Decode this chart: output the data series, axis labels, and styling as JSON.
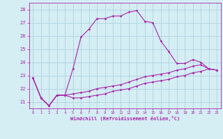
{
  "xlabel": "Windchill (Refroidissement éolien,°C)",
  "background_color": "#d4eef4",
  "grid_color": "#aaccdd",
  "line_color": "#aa22aa",
  "x_ticks": [
    0,
    1,
    2,
    3,
    4,
    5,
    6,
    7,
    8,
    9,
    10,
    11,
    12,
    13,
    14,
    15,
    16,
    17,
    18,
    19,
    20,
    21,
    22,
    23
  ],
  "ylim": [
    20.5,
    28.5
  ],
  "xlim": [
    -0.5,
    23.5
  ],
  "yticks": [
    21,
    22,
    23,
    24,
    25,
    26,
    27,
    28
  ],
  "line1": [
    22.8,
    21.3,
    20.7,
    21.5,
    21.5,
    23.5,
    25.9,
    26.5,
    27.3,
    27.3,
    27.5,
    27.5,
    27.8,
    27.9,
    27.1,
    27.0,
    25.6,
    24.8,
    23.9,
    23.9,
    24.2,
    24.0,
    23.5,
    23.4
  ],
  "line2": [
    22.8,
    21.3,
    20.7,
    21.5,
    21.5,
    21.6,
    21.7,
    21.8,
    22.0,
    22.1,
    22.2,
    22.3,
    22.5,
    22.7,
    22.9,
    23.0,
    23.1,
    23.2,
    23.4,
    23.5,
    23.7,
    23.8,
    23.5,
    23.4
  ],
  "line3": [
    22.8,
    21.3,
    20.7,
    21.5,
    21.5,
    21.3,
    21.3,
    21.4,
    21.5,
    21.6,
    21.8,
    21.9,
    22.0,
    22.2,
    22.4,
    22.5,
    22.6,
    22.7,
    22.9,
    23.0,
    23.2,
    23.3,
    23.5,
    23.4
  ]
}
